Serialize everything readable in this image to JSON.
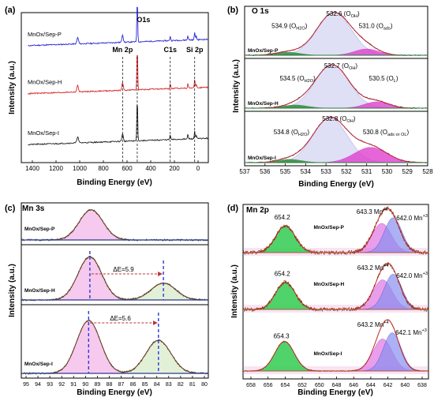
{
  "chart_data": [
    {
      "panel": "(a)",
      "type": "line",
      "title": "",
      "xlabel": "Binding Energy (eV)",
      "ylabel": "Intensity (a.u.)",
      "xlim": [
        1400,
        0
      ],
      "x_ticks": [
        "1400",
        "1200",
        "1000",
        "800",
        "600",
        "400",
        "200",
        "0"
      ],
      "series": [
        {
          "name": "MnOx/Sep-P",
          "color": "#2a2ad8",
          "offset": 0.78
        },
        {
          "name": "MnOx/Sep-H",
          "color": "#d8282a",
          "offset": 0.46
        },
        {
          "name": "MnOx/Sep-I",
          "color": "#222222",
          "offset": 0.12
        }
      ],
      "peak_labels": [
        {
          "label": "O1s",
          "energy": 532
        },
        {
          "label": "Mn 2p",
          "energy": 642
        },
        {
          "label": "C1s",
          "energy": 285
        },
        {
          "label": "Si 2p",
          "energy": 102
        }
      ]
    },
    {
      "panel": "(b)",
      "type": "line",
      "title": "O 1s",
      "xlabel": "Binding Energy (eV)",
      "ylabel": "Intensity (a.u.)",
      "xlim": [
        537,
        528
      ],
      "x_ticks": [
        "537",
        "536",
        "535",
        "534",
        "533",
        "532",
        "531",
        "530",
        "529",
        "528"
      ],
      "subpanels": [
        {
          "sample": "MnOx/Sep-P",
          "peaks": [
            {
              "label": "534.9 (O",
              "sub": "H2O",
              "energy": 534.9
            },
            {
              "label": "532.6 (O",
              "sub": "OH",
              "energy": 532.6
            },
            {
              "label": "531.0 (O",
              "sub": "ads",
              "energy": 531.0
            }
          ]
        },
        {
          "sample": "MnOx/Sep-H",
          "peaks": [
            {
              "label": "534.5 (O",
              "sub": "H2O",
              "energy": 534.5
            },
            {
              "label": "532.7 (O",
              "sub": "OH",
              "energy": 532.7
            },
            {
              "label": "530.5 (O",
              "sub": "L",
              "energy": 530.5
            }
          ]
        },
        {
          "sample": "MnOx/Sep-I",
          "peaks": [
            {
              "label": "534.8 (O",
              "sub": "H2O",
              "energy": 534.8
            },
            {
              "label": "532.8 (O",
              "sub": "OH",
              "energy": 532.8
            },
            {
              "label": "530.8 (O",
              "sub": "ads or OL",
              "energy": 530.8
            }
          ]
        }
      ]
    },
    {
      "panel": "(c)",
      "type": "line",
      "title": "Mn 3s",
      "xlabel": "Binding Energy (eV)",
      "ylabel": "Intensity (a.u.)",
      "xlim": [
        95,
        80
      ],
      "x_ticks": [
        "95",
        "94",
        "93",
        "92",
        "91",
        "90",
        "89",
        "88",
        "87",
        "86",
        "85",
        "84",
        "83",
        "82",
        "81",
        "80"
      ],
      "subpanels": [
        {
          "sample": "MnOx/Sep-P",
          "peaks": [
            89.4
          ]
        },
        {
          "sample": "MnOx/Sep-H",
          "peaks": [
            89.5,
            83.6
          ],
          "delta_label": "ΔE=5.9"
        },
        {
          "sample": "MnOx/Sep-I",
          "peaks": [
            89.6,
            84.0
          ],
          "delta_label": "ΔE=5.6"
        }
      ]
    },
    {
      "panel": "(d)",
      "type": "line",
      "title": "Mn 2p",
      "xlabel": "Binding Energy (eV)",
      "ylabel": "Intensity (a.u.)",
      "xlim": [
        659,
        638
      ],
      "x_ticks": [
        "658",
        "656",
        "654",
        "652",
        "650",
        "648",
        "646",
        "644",
        "642",
        "640",
        "638"
      ],
      "subpanels": [
        {
          "sample": "MnOx/Sep-P",
          "peaks": [
            {
              "label": "654.2",
              "energy": 654.2
            },
            {
              "label": "643.3 Mn",
              "sup": "+4",
              "energy": 643.3
            },
            {
              "label": "642.0 Mn",
              "sup": "+3",
              "energy": 642.0
            }
          ]
        },
        {
          "sample": "MnOx/Sep-H",
          "peaks": [
            {
              "label": "654.2",
              "energy": 654.2
            },
            {
              "label": "643.2 Mn",
              "sup": "+4",
              "energy": 643.2
            },
            {
              "label": "642.0 Mn",
              "sup": "+3",
              "energy": 642.0
            }
          ]
        },
        {
          "sample": "MnOx/Sep-I",
          "peaks": [
            {
              "label": "654.3",
              "energy": 654.3
            },
            {
              "label": "643.2 Mn",
              "sup": "+4",
              "energy": 643.2
            },
            {
              "label": "642.1 Mn",
              "sup": "+3",
              "energy": 642.1
            }
          ]
        }
      ]
    }
  ]
}
